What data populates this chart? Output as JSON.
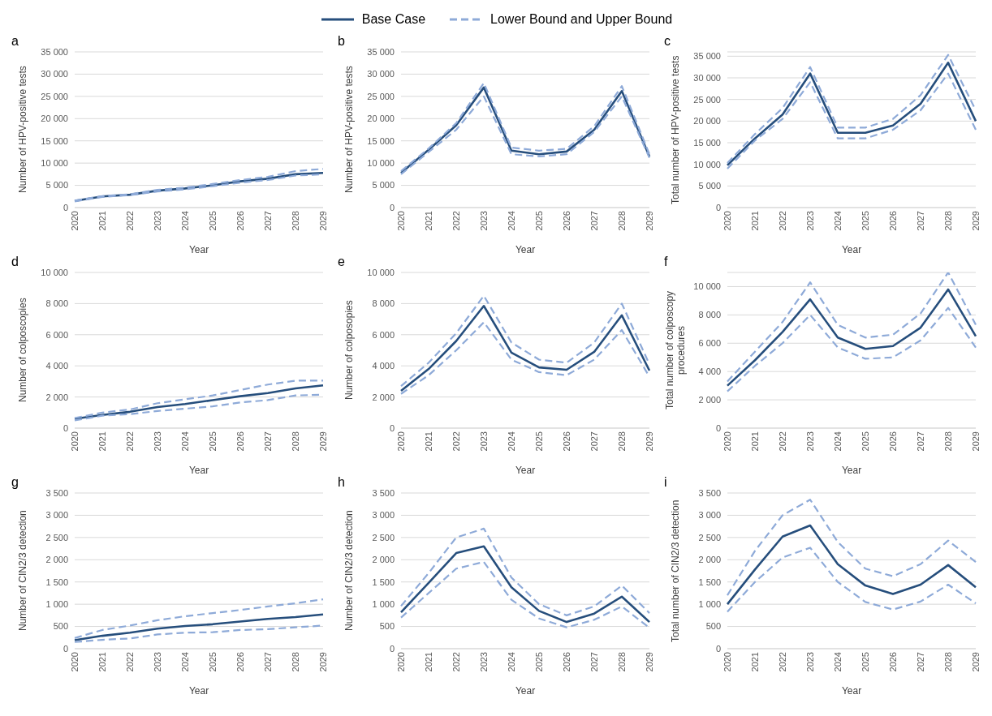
{
  "chart_data": [
    {
      "type": "line",
      "title": "a",
      "xlabel": "Year",
      "ylabel": "Number of HPV-positive tests",
      "legend": "top",
      "grid": "y",
      "categories": [
        "2020",
        "2021",
        "2022",
        "2023",
        "2024",
        "2025",
        "2026",
        "2027",
        "2028",
        "2029"
      ],
      "ylim": [
        0,
        35000
      ],
      "yticks": [
        {
          "value": 0,
          "label": "0"
        },
        {
          "value": 5000,
          "label": "5 000"
        },
        {
          "value": 10000,
          "label": "10 000"
        },
        {
          "value": 15000,
          "label": "15 000"
        },
        {
          "value": 20000,
          "label": "20 000"
        },
        {
          "value": 25000,
          "label": "25 000"
        },
        {
          "value": 30000,
          "label": "30 000"
        },
        {
          "value": 35000,
          "label": "35 000"
        }
      ],
      "series": [
        {
          "name": "Base Case",
          "color": "#264e7c",
          "line_style": "solid",
          "values": [
            1500,
            2500,
            2900,
            3800,
            4300,
            5000,
            5900,
            6500,
            7500,
            7800
          ]
        },
        {
          "name": "Lower Bound and Upper Bound",
          "color": "#8eaad8",
          "line_style": "dashed",
          "values": [
            1400,
            2400,
            2800,
            3600,
            4100,
            4800,
            5600,
            6200,
            7200,
            7500
          ]
        },
        {
          "color": "#8eaad8",
          "line_style": "dashed",
          "values": [
            1600,
            2600,
            3000,
            4000,
            4500,
            5300,
            6200,
            6900,
            8200,
            8700
          ]
        }
      ]
    },
    {
      "type": "line",
      "title": "b",
      "xlabel": "Year",
      "ylabel": "Number of HPV-positive tests",
      "grid": "y",
      "categories": [
        "2020",
        "2021",
        "2022",
        "2023",
        "2024",
        "2025",
        "2026",
        "2027",
        "2028",
        "2029"
      ],
      "ylim": [
        0,
        35000
      ],
      "yticks": [
        {
          "value": 0,
          "label": "0"
        },
        {
          "value": 5000,
          "label": "5 000"
        },
        {
          "value": 10000,
          "label": "10 000"
        },
        {
          "value": 15000,
          "label": "15 000"
        },
        {
          "value": 20000,
          "label": "20 000"
        },
        {
          "value": 25000,
          "label": "25 000"
        },
        {
          "value": 30000,
          "label": "30 000"
        },
        {
          "value": 35000,
          "label": "35 000"
        }
      ],
      "series": [
        {
          "color": "#264e7c",
          "line_style": "solid",
          "values": [
            7800,
            13000,
            18500,
            27000,
            12800,
            12000,
            12600,
            17500,
            26200,
            11500
          ]
        },
        {
          "color": "#8eaad8",
          "line_style": "dashed",
          "values": [
            7500,
            12500,
            17500,
            25000,
            12000,
            11500,
            12000,
            17000,
            25000,
            11200
          ]
        },
        {
          "color": "#8eaad8",
          "line_style": "dashed",
          "values": [
            8200,
            13300,
            19000,
            28000,
            13500,
            12800,
            13200,
            18300,
            27300,
            12000
          ]
        }
      ]
    },
    {
      "type": "line",
      "title": "c",
      "xlabel": "Year",
      "ylabel": "Total number of HPV-positive tests",
      "grid": "y",
      "categories": [
        "2020",
        "2021",
        "2022",
        "2023",
        "2024",
        "2025",
        "2026",
        "2027",
        "2028",
        "2029"
      ],
      "ylim": [
        0,
        36000
      ],
      "yticks": [
        {
          "value": 0,
          "label": "0"
        },
        {
          "value": 5000,
          "label": "5 000"
        },
        {
          "value": 10000,
          "label": "10 000"
        },
        {
          "value": 15000,
          "label": "15 000"
        },
        {
          "value": 20000,
          "label": "20 000"
        },
        {
          "value": 25000,
          "label": "25 000"
        },
        {
          "value": 30000,
          "label": "30 000"
        },
        {
          "value": 35000,
          "label": "35 000"
        }
      ],
      "series": [
        {
          "color": "#264e7c",
          "line_style": "solid",
          "values": [
            9800,
            16000,
            21500,
            31000,
            17300,
            17300,
            19000,
            24000,
            33500,
            20000
          ]
        },
        {
          "color": "#8eaad8",
          "line_style": "dashed",
          "values": [
            9000,
            15500,
            20500,
            29000,
            16000,
            16000,
            18000,
            22500,
            31000,
            18000
          ]
        },
        {
          "color": "#8eaad8",
          "line_style": "dashed",
          "values": [
            10300,
            17000,
            23000,
            32500,
            18500,
            18500,
            20500,
            26000,
            35300,
            22500
          ]
        }
      ]
    },
    {
      "type": "line",
      "title": "d",
      "xlabel": "Year",
      "ylabel": "Number of colposcopies",
      "grid": "y",
      "categories": [
        "2020",
        "2021",
        "2022",
        "2023",
        "2024",
        "2025",
        "2026",
        "2027",
        "2028",
        "2029"
      ],
      "ylim": [
        0,
        10000
      ],
      "yticks": [
        {
          "value": 0,
          "label": "0"
        },
        {
          "value": 2000,
          "label": "2 000"
        },
        {
          "value": 4000,
          "label": "4 000"
        },
        {
          "value": 6000,
          "label": "6 000"
        },
        {
          "value": 8000,
          "label": "8 000"
        },
        {
          "value": 10000,
          "label": "10 000"
        }
      ],
      "series": [
        {
          "color": "#264e7c",
          "line_style": "solid",
          "values": [
            600,
            850,
            1050,
            1350,
            1550,
            1800,
            2050,
            2250,
            2550,
            2750
          ]
        },
        {
          "color": "#8eaad8",
          "line_style": "dashed",
          "values": [
            500,
            800,
            900,
            1100,
            1250,
            1400,
            1650,
            1800,
            2100,
            2150
          ]
        },
        {
          "color": "#8eaad8",
          "line_style": "dashed",
          "values": [
            650,
            1000,
            1200,
            1600,
            1850,
            2100,
            2450,
            2800,
            3050,
            3050
          ]
        }
      ]
    },
    {
      "type": "line",
      "title": "e",
      "xlabel": "Year",
      "ylabel": "Number of colposopies",
      "grid": "y",
      "categories": [
        "2020",
        "2021",
        "2022",
        "2023",
        "2024",
        "2025",
        "2026",
        "2027",
        "2028",
        "2029"
      ],
      "ylim": [
        0,
        10000
      ],
      "yticks": [
        {
          "value": 0,
          "label": "0"
        },
        {
          "value": 2000,
          "label": "2 000"
        },
        {
          "value": 4000,
          "label": "4 000"
        },
        {
          "value": 6000,
          "label": "6 000"
        },
        {
          "value": 8000,
          "label": "8 000"
        },
        {
          "value": 10000,
          "label": "10 000"
        }
      ],
      "series": [
        {
          "color": "#264e7c",
          "line_style": "solid",
          "values": [
            2400,
            3800,
            5600,
            7850,
            4850,
            3900,
            3750,
            4900,
            7250,
            3700
          ]
        },
        {
          "color": "#8eaad8",
          "line_style": "dashed",
          "values": [
            2200,
            3400,
            5000,
            6800,
            4400,
            3600,
            3400,
            4400,
            6300,
            3300
          ]
        },
        {
          "color": "#8eaad8",
          "line_style": "dashed",
          "values": [
            2700,
            4200,
            6100,
            8500,
            5500,
            4400,
            4200,
            5500,
            8000,
            4100
          ]
        }
      ]
    },
    {
      "type": "line",
      "title": "f",
      "xlabel": "Year",
      "ylabel": "Total number of colposcopy procedures",
      "grid": "y",
      "categories": [
        "2020",
        "2021",
        "2022",
        "2023",
        "2024",
        "2025",
        "2026",
        "2027",
        "2028",
        "2029"
      ],
      "ylim": [
        0,
        11000
      ],
      "yticks": [
        {
          "value": 0,
          "label": "0"
        },
        {
          "value": 2000,
          "label": "2 000"
        },
        {
          "value": 4000,
          "label": "4 000"
        },
        {
          "value": 6000,
          "label": "6 000"
        },
        {
          "value": 8000,
          "label": "8 000"
        },
        {
          "value": 10000,
          "label": "10 000"
        }
      ],
      "series": [
        {
          "color": "#264e7c",
          "line_style": "solid",
          "values": [
            3000,
            4800,
            6800,
            9100,
            6400,
            5600,
            5800,
            7100,
            9800,
            6500
          ]
        },
        {
          "color": "#8eaad8",
          "line_style": "dashed",
          "values": [
            2600,
            4400,
            6000,
            8000,
            5700,
            4900,
            5000,
            6200,
            8500,
            5700
          ]
        },
        {
          "color": "#8eaad8",
          "line_style": "dashed",
          "values": [
            3300,
            5400,
            7500,
            10300,
            7300,
            6400,
            6600,
            8100,
            11000,
            7300
          ]
        }
      ]
    },
    {
      "type": "line",
      "title": "g",
      "xlabel": "Year",
      "ylabel": "Number of CIN2/3 detection",
      "grid": "y",
      "categories": [
        "2020",
        "2021",
        "2022",
        "2023",
        "2024",
        "2025",
        "2026",
        "2027",
        "2028",
        "2029"
      ],
      "ylim": [
        0,
        3500
      ],
      "yticks": [
        {
          "value": 0,
          "label": "0"
        },
        {
          "value": 500,
          "label": "500"
        },
        {
          "value": 1000,
          "label": "1 000"
        },
        {
          "value": 1500,
          "label": "1 500"
        },
        {
          "value": 2000,
          "label": "2 000"
        },
        {
          "value": 2500,
          "label": "2 500"
        },
        {
          "value": 3000,
          "label": "3 000"
        },
        {
          "value": 3500,
          "label": "3 500"
        }
      ],
      "series": [
        {
          "color": "#264e7c",
          "line_style": "solid",
          "values": [
            190,
            290,
            360,
            450,
            510,
            550,
            610,
            670,
            710,
            770
          ]
        },
        {
          "color": "#8eaad8",
          "line_style": "dashed",
          "values": [
            150,
            200,
            230,
            320,
            360,
            370,
            420,
            440,
            480,
            520
          ]
        },
        {
          "color": "#8eaad8",
          "line_style": "dashed",
          "values": [
            240,
            420,
            520,
            640,
            730,
            800,
            870,
            950,
            1020,
            1110
          ]
        }
      ]
    },
    {
      "type": "line",
      "title": "h",
      "xlabel": "Year",
      "ylabel": "Number of CIN2/3 detection",
      "grid": "y",
      "categories": [
        "2020",
        "2021",
        "2022",
        "2023",
        "2024",
        "2025",
        "2026",
        "2027",
        "2028",
        "2029"
      ],
      "ylim": [
        0,
        3500
      ],
      "yticks": [
        {
          "value": 0,
          "label": "0"
        },
        {
          "value": 500,
          "label": "500"
        },
        {
          "value": 1000,
          "label": "1 000"
        },
        {
          "value": 1500,
          "label": "1 500"
        },
        {
          "value": 2000,
          "label": "2 000"
        },
        {
          "value": 2500,
          "label": "2 500"
        },
        {
          "value": 3000,
          "label": "3 000"
        },
        {
          "value": 3500,
          "label": "3 500"
        }
      ],
      "series": [
        {
          "color": "#264e7c",
          "line_style": "solid",
          "values": [
            820,
            1480,
            2150,
            2300,
            1380,
            850,
            600,
            790,
            1170,
            600
          ]
        },
        {
          "color": "#8eaad8",
          "line_style": "dashed",
          "values": [
            700,
            1250,
            1800,
            1950,
            1100,
            680,
            480,
            650,
            950,
            470
          ]
        },
        {
          "color": "#8eaad8",
          "line_style": "dashed",
          "values": [
            960,
            1700,
            2500,
            2700,
            1600,
            1000,
            750,
            950,
            1420,
            800
          ]
        }
      ]
    },
    {
      "type": "line",
      "title": "i",
      "xlabel": "Year",
      "ylabel": "Total number of CIN2/3 detection",
      "grid": "y",
      "categories": [
        "2020",
        "2021",
        "2022",
        "2023",
        "2024",
        "2025",
        "2026",
        "2027",
        "2028",
        "2029"
      ],
      "ylim": [
        0,
        3500
      ],
      "yticks": [
        {
          "value": 0,
          "label": "0"
        },
        {
          "value": 500,
          "label": "500"
        },
        {
          "value": 1000,
          "label": "1 000"
        },
        {
          "value": 1500,
          "label": "1 500"
        },
        {
          "value": 2000,
          "label": "2 000"
        },
        {
          "value": 2500,
          "label": "2 500"
        },
        {
          "value": 3000,
          "label": "3 000"
        },
        {
          "value": 3500,
          "label": "3 500"
        }
      ],
      "series": [
        {
          "color": "#264e7c",
          "line_style": "solid",
          "values": [
            1000,
            1780,
            2520,
            2770,
            1900,
            1420,
            1230,
            1440,
            1880,
            1380
          ]
        },
        {
          "color": "#8eaad8",
          "line_style": "dashed",
          "values": [
            830,
            1500,
            2050,
            2270,
            1500,
            1050,
            880,
            1060,
            1440,
            1020
          ]
        },
        {
          "color": "#8eaad8",
          "line_style": "dashed",
          "values": [
            1200,
            2200,
            3000,
            3350,
            2400,
            1800,
            1630,
            1900,
            2430,
            1950
          ]
        }
      ]
    }
  ]
}
